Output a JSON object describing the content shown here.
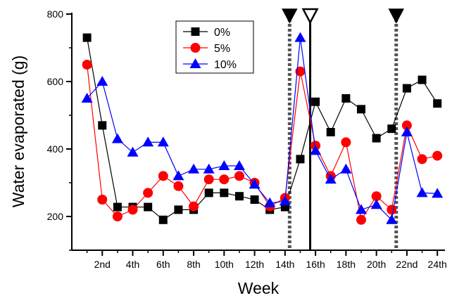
{
  "chart_data": {
    "type": "line",
    "xlabel": "Week",
    "ylabel": "Water evaporated (g)",
    "xlim": [
      0,
      24.5
    ],
    "ylim": [
      100,
      800
    ],
    "x_ticks": [
      2,
      4,
      6,
      8,
      10,
      12,
      14,
      16,
      18,
      20,
      22,
      24
    ],
    "x_tick_labels": [
      "2nd",
      "4th",
      "6th",
      "8th",
      "10th",
      "12th",
      "14th",
      "16th",
      "18th",
      "20th",
      "22nd",
      "24th"
    ],
    "y_ticks": [
      200,
      400,
      600,
      800
    ],
    "y_tick_labels": [
      "200",
      "400",
      "600",
      "800"
    ],
    "legend_position": "top-center",
    "series": [
      {
        "name": "0%",
        "color": "#000000",
        "marker": "square",
        "x": [
          1,
          2,
          3,
          4,
          5,
          6,
          7,
          8,
          9,
          10,
          11,
          12,
          13,
          14,
          15,
          16,
          17,
          18,
          19,
          20,
          21,
          22,
          23,
          24
        ],
        "values": [
          730,
          470,
          228,
          228,
          228,
          190,
          220,
          220,
          270,
          270,
          260,
          250,
          220,
          228,
          370,
          540,
          450,
          550,
          518,
          432,
          460,
          580,
          605,
          535
        ]
      },
      {
        "name": "5%",
        "color": "#ff0000",
        "marker": "circle",
        "x": [
          1,
          2,
          3,
          4,
          5,
          6,
          7,
          8,
          9,
          10,
          11,
          12,
          13,
          14,
          15,
          16,
          17,
          18,
          19,
          20,
          21,
          22,
          23,
          24
        ],
        "values": [
          650,
          250,
          200,
          220,
          270,
          320,
          290,
          230,
          310,
          310,
          320,
          300,
          230,
          255,
          630,
          410,
          320,
          420,
          190,
          260,
          220,
          470,
          370,
          380
        ]
      },
      {
        "name": "10%",
        "color": "#0000ff",
        "marker": "triangle",
        "x": [
          1,
          2,
          3,
          4,
          5,
          6,
          7,
          8,
          9,
          10,
          11,
          12,
          13,
          14,
          15,
          16,
          17,
          18,
          19,
          20,
          21,
          22,
          23,
          24
        ],
        "values": [
          550,
          600,
          430,
          390,
          420,
          420,
          320,
          340,
          340,
          350,
          350,
          295,
          240,
          245,
          730,
          395,
          310,
          340,
          220,
          235,
          190,
          450,
          270,
          268
        ]
      }
    ],
    "markers": [
      {
        "x": 14.3,
        "style": "dashed-gray",
        "arrow": "filled"
      },
      {
        "x": 15.65,
        "style": "solid-black",
        "arrow": "open"
      },
      {
        "x": 21.3,
        "style": "dashed-gray",
        "arrow": "filled"
      }
    ]
  }
}
